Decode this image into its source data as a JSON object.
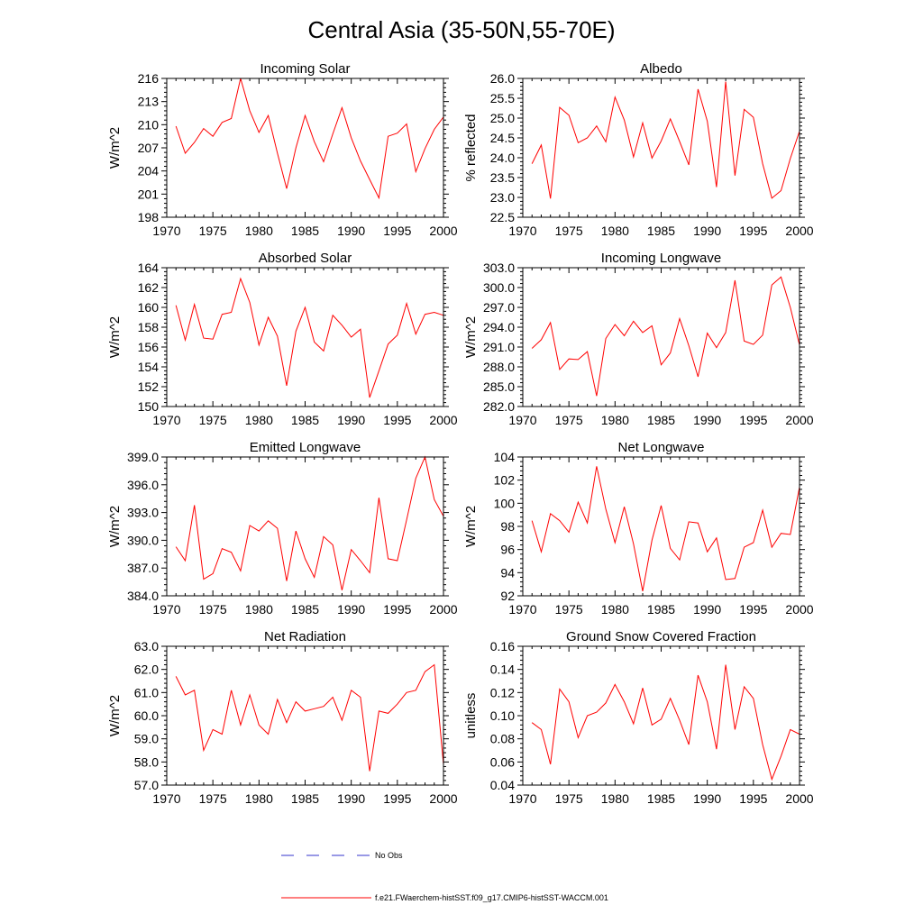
{
  "figure": {
    "title": "Central Asia (35-50N,55-70E)"
  },
  "legend": {
    "entries": [
      {
        "label": "No Obs",
        "color": "#3333cc",
        "dash": true
      },
      {
        "label": "f.e21.FWaerchem-histSST.f09_g17.CMIP6-histSST-WACCM.001",
        "color": "#ff0000",
        "dash": false
      }
    ]
  },
  "chart_data": [
    {
      "type": "line",
      "title": "Incoming Solar",
      "xlabel": "",
      "ylabel": "W/m^2",
      "xlim": [
        1970,
        2000
      ],
      "ylim": [
        198,
        216
      ],
      "xticks": [
        1970,
        1975,
        1980,
        1985,
        1990,
        1995,
        2000
      ],
      "yticks": [
        "198",
        "201",
        "204",
        "207",
        "210",
        "213",
        "216"
      ],
      "series": [
        {
          "color": "#ff0000",
          "x": [
            1971,
            1972,
            1973,
            1974,
            1975,
            1976,
            1977,
            1978,
            1979,
            1980,
            1981,
            1982,
            1983,
            1984,
            1985,
            1986,
            1987,
            1988,
            1989,
            1990,
            1991,
            1992,
            1993,
            1994,
            1995,
            1996,
            1997,
            1998,
            1999,
            2000
          ],
          "values": [
            209.8,
            206.3,
            207.7,
            209.5,
            208.5,
            210.3,
            210.8,
            216.0,
            211.8,
            209.0,
            211.2,
            206.3,
            201.7,
            207.0,
            211.2,
            207.8,
            205.2,
            208.8,
            212.2,
            208.3,
            205.3,
            202.9,
            200.5,
            208.5,
            208.9,
            210.1,
            203.9,
            206.9,
            209.4,
            211.0
          ]
        }
      ]
    },
    {
      "type": "line",
      "title": "Albedo",
      "xlabel": "",
      "ylabel": "% reflected",
      "xlim": [
        1970,
        2000
      ],
      "ylim": [
        22.5,
        26.0
      ],
      "xticks": [
        1970,
        1975,
        1980,
        1985,
        1990,
        1995,
        2000
      ],
      "yticks": [
        "22.5",
        "23.0",
        "23.5",
        "24.0",
        "24.5",
        "25.0",
        "25.5",
        "26.0"
      ],
      "series": [
        {
          "color": "#ff0000",
          "x": [
            1971,
            1972,
            1973,
            1974,
            1975,
            1976,
            1977,
            1978,
            1979,
            1980,
            1981,
            1982,
            1983,
            1984,
            1985,
            1986,
            1987,
            1988,
            1989,
            1990,
            1991,
            1992,
            1993,
            1994,
            1995,
            1996,
            1997,
            1998,
            1999,
            2000
          ],
          "values": [
            23.85,
            24.32,
            22.97,
            25.27,
            25.07,
            24.38,
            24.5,
            24.8,
            24.4,
            25.53,
            24.95,
            24.02,
            24.88,
            23.99,
            24.42,
            24.98,
            24.41,
            23.82,
            25.73,
            24.92,
            23.26,
            25.92,
            23.55,
            25.22,
            25.02,
            23.85,
            22.98,
            23.17,
            23.98,
            24.67
          ]
        }
      ]
    },
    {
      "type": "line",
      "title": "Absorbed Solar",
      "xlabel": "",
      "ylabel": "W/m^2",
      "xlim": [
        1970,
        2000
      ],
      "ylim": [
        150,
        164
      ],
      "xticks": [
        1970,
        1975,
        1980,
        1985,
        1990,
        1995,
        2000
      ],
      "yticks": [
        "150",
        "152",
        "154",
        "156",
        "158",
        "160",
        "162",
        "164"
      ],
      "series": [
        {
          "color": "#ff0000",
          "x": [
            1971,
            1972,
            1973,
            1974,
            1975,
            1976,
            1977,
            1978,
            1979,
            1980,
            1981,
            1982,
            1983,
            1984,
            1985,
            1986,
            1987,
            1988,
            1989,
            1990,
            1991,
            1992,
            1993,
            1994,
            1995,
            1996,
            1997,
            1998,
            1999,
            2000
          ],
          "values": [
            160.2,
            156.7,
            160.3,
            156.9,
            156.8,
            159.3,
            159.5,
            162.9,
            160.5,
            156.2,
            159.0,
            157.1,
            152.1,
            157.6,
            160.0,
            156.5,
            155.6,
            159.2,
            158.2,
            157.0,
            157.8,
            150.9,
            153.6,
            156.3,
            157.2,
            160.4,
            157.3,
            159.3,
            159.5,
            159.2
          ]
        }
      ]
    },
    {
      "type": "line",
      "title": "Incoming Longwave",
      "xlabel": "",
      "ylabel": "W/m^2",
      "xlim": [
        1970,
        2000
      ],
      "ylim": [
        282.0,
        303.0
      ],
      "xticks": [
        1970,
        1975,
        1980,
        1985,
        1990,
        1995,
        2000
      ],
      "yticks": [
        "282.0",
        "285.0",
        "288.0",
        "291.0",
        "294.0",
        "297.0",
        "300.0",
        "303.0"
      ],
      "series": [
        {
          "color": "#ff0000",
          "x": [
            1971,
            1972,
            1973,
            1974,
            1975,
            1976,
            1977,
            1978,
            1979,
            1980,
            1981,
            1982,
            1983,
            1984,
            1985,
            1986,
            1987,
            1988,
            1989,
            1990,
            1991,
            1992,
            1993,
            1994,
            1995,
            1996,
            1997,
            1998,
            1999,
            2000
          ],
          "values": [
            290.8,
            292.1,
            294.7,
            287.6,
            289.2,
            289.1,
            290.3,
            283.6,
            292.3,
            294.4,
            292.7,
            294.9,
            293.2,
            294.2,
            288.3,
            290.1,
            295.3,
            291.2,
            286.5,
            293.1,
            290.9,
            293.2,
            301.1,
            291.9,
            291.4,
            292.8,
            300.4,
            301.6,
            297.0,
            291.3
          ]
        }
      ]
    },
    {
      "type": "line",
      "title": "Emitted Longwave",
      "xlabel": "",
      "ylabel": "W/m^2",
      "xlim": [
        1970,
        2000
      ],
      "ylim": [
        384.0,
        399.0
      ],
      "xticks": [
        1970,
        1975,
        1980,
        1985,
        1990,
        1995,
        2000
      ],
      "yticks": [
        "384.0",
        "387.0",
        "390.0",
        "393.0",
        "396.0",
        "399.0"
      ],
      "series": [
        {
          "color": "#ff0000",
          "x": [
            1971,
            1972,
            1973,
            1974,
            1975,
            1976,
            1977,
            1978,
            1979,
            1980,
            1981,
            1982,
            1983,
            1984,
            1985,
            1986,
            1987,
            1988,
            1989,
            1990,
            1991,
            1992,
            1993,
            1994,
            1995,
            1996,
            1997,
            1998,
            1999,
            2000
          ],
          "values": [
            389.3,
            387.8,
            393.8,
            385.8,
            386.4,
            389.1,
            388.7,
            386.7,
            391.6,
            391.0,
            392.1,
            391.3,
            385.6,
            391.0,
            388.0,
            386.0,
            390.4,
            389.5,
            384.6,
            389.0,
            387.8,
            386.5,
            394.6,
            388.0,
            387.8,
            392.2,
            396.7,
            399.0,
            394.4,
            392.6
          ]
        }
      ]
    },
    {
      "type": "line",
      "title": "Net Longwave",
      "xlabel": "",
      "ylabel": "W/m^2",
      "xlim": [
        1970,
        2000
      ],
      "ylim": [
        92,
        104
      ],
      "xticks": [
        1970,
        1975,
        1980,
        1985,
        1990,
        1995,
        2000
      ],
      "yticks": [
        "92",
        "94",
        "96",
        "98",
        "100",
        "102",
        "104"
      ],
      "series": [
        {
          "color": "#ff0000",
          "x": [
            1971,
            1972,
            1973,
            1974,
            1975,
            1976,
            1977,
            1978,
            1979,
            1980,
            1981,
            1982,
            1983,
            1984,
            1985,
            1986,
            1987,
            1988,
            1989,
            1990,
            1991,
            1992,
            1993,
            1994,
            1995,
            1996,
            1997,
            1998,
            1999,
            2000
          ],
          "values": [
            98.5,
            95.8,
            99.1,
            98.5,
            97.5,
            100.1,
            98.3,
            103.2,
            99.5,
            96.6,
            99.7,
            96.5,
            92.4,
            96.8,
            99.8,
            96.1,
            95.1,
            98.4,
            98.3,
            95.8,
            97.0,
            93.4,
            93.5,
            96.2,
            96.6,
            99.4,
            96.2,
            97.4,
            97.3,
            101.4
          ]
        }
      ]
    },
    {
      "type": "line",
      "title": "Net Radiation",
      "xlabel": "",
      "ylabel": "W/m^2",
      "xlim": [
        1970,
        2000
      ],
      "ylim": [
        57.0,
        63.0
      ],
      "xticks": [
        1970,
        1975,
        1980,
        1985,
        1990,
        1995,
        2000
      ],
      "yticks": [
        "57.0",
        "58.0",
        "59.0",
        "60.0",
        "61.0",
        "62.0",
        "63.0"
      ],
      "series": [
        {
          "color": "#ff0000",
          "x": [
            1971,
            1972,
            1973,
            1974,
            1975,
            1976,
            1977,
            1978,
            1979,
            1980,
            1981,
            1982,
            1983,
            1984,
            1985,
            1986,
            1987,
            1988,
            1989,
            1990,
            1991,
            1992,
            1993,
            1994,
            1995,
            1996,
            1997,
            1998,
            1999,
            2000
          ],
          "values": [
            61.7,
            60.9,
            61.1,
            58.5,
            59.4,
            59.2,
            61.1,
            59.6,
            60.9,
            59.6,
            59.2,
            60.7,
            59.7,
            60.6,
            60.2,
            60.3,
            60.4,
            60.8,
            59.8,
            61.1,
            60.8,
            57.6,
            60.2,
            60.1,
            60.5,
            61.0,
            61.1,
            61.9,
            62.2,
            57.9
          ]
        }
      ]
    },
    {
      "type": "line",
      "title": "Ground Snow Covered Fraction",
      "xlabel": "",
      "ylabel": "unitless",
      "xlim": [
        1970,
        2000
      ],
      "ylim": [
        0.04,
        0.16
      ],
      "xticks": [
        1970,
        1975,
        1980,
        1985,
        1990,
        1995,
        2000
      ],
      "yticks": [
        "0.04",
        "0.06",
        "0.08",
        "0.10",
        "0.12",
        "0.14",
        "0.16"
      ],
      "series": [
        {
          "color": "#ff0000",
          "x": [
            1971,
            1972,
            1973,
            1974,
            1975,
            1976,
            1977,
            1978,
            1979,
            1980,
            1981,
            1982,
            1983,
            1984,
            1985,
            1986,
            1987,
            1988,
            1989,
            1990,
            1991,
            1992,
            1993,
            1994,
            1995,
            1996,
            1997,
            1998,
            1999,
            2000
          ],
          "values": [
            0.094,
            0.088,
            0.058,
            0.123,
            0.112,
            0.081,
            0.1,
            0.103,
            0.111,
            0.127,
            0.112,
            0.093,
            0.124,
            0.092,
            0.097,
            0.115,
            0.096,
            0.075,
            0.135,
            0.112,
            0.071,
            0.144,
            0.088,
            0.125,
            0.115,
            0.075,
            0.045,
            0.065,
            0.088,
            0.084
          ]
        }
      ]
    }
  ]
}
